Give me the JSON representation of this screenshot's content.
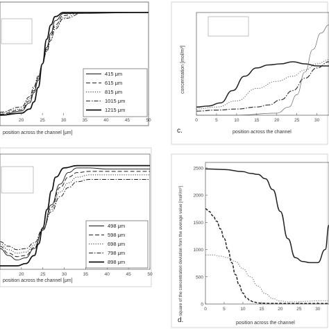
{
  "chart_data": [
    {
      "id": "a",
      "type": "line",
      "panel_label": "",
      "xlabel": "position across the channel [μm]",
      "ylabel": "",
      "xticks": [
        20,
        25,
        30,
        35,
        40,
        45,
        50
      ],
      "xlim": [
        15,
        50
      ],
      "ylim": [
        0,
        1
      ],
      "legend": [
        "415 μm",
        "615 μm",
        "815 μm",
        "1015 μm",
        "1215 μm"
      ],
      "series": [
        {
          "name": "415 μm",
          "x": [
            15,
            20,
            22,
            23,
            24,
            25,
            26,
            27,
            28,
            30,
            50
          ],
          "y": [
            0.0,
            0.04,
            0.12,
            0.22,
            0.34,
            0.5,
            0.66,
            0.8,
            0.92,
            0.99,
            1.0
          ]
        },
        {
          "name": "615 μm",
          "x": [
            15,
            20,
            22,
            23,
            24,
            25,
            26,
            27,
            28,
            30,
            33,
            50
          ],
          "y": [
            0.01,
            0.05,
            0.14,
            0.24,
            0.36,
            0.5,
            0.64,
            0.78,
            0.88,
            0.97,
            1.0,
            1.0
          ]
        },
        {
          "name": "815 μm",
          "x": [
            15,
            20,
            22,
            23,
            24,
            25,
            26,
            27,
            28,
            30,
            34,
            50
          ],
          "y": [
            0.02,
            0.06,
            0.16,
            0.26,
            0.37,
            0.5,
            0.63,
            0.75,
            0.86,
            0.95,
            1.0,
            1.0
          ]
        },
        {
          "name": "1015 μm",
          "x": [
            15,
            20,
            22,
            23,
            24,
            25,
            26,
            27,
            28,
            30,
            35,
            50
          ],
          "y": [
            0.03,
            0.08,
            0.18,
            0.28,
            0.38,
            0.5,
            0.62,
            0.73,
            0.84,
            0.94,
            1.0,
            1.0
          ]
        },
        {
          "name": "1215 μm",
          "x": [
            15,
            20,
            22,
            23,
            24,
            25,
            26,
            27,
            28,
            30,
            50
          ],
          "y": [
            0.0,
            0.02,
            0.06,
            0.13,
            0.27,
            0.5,
            0.74,
            0.88,
            0.96,
            1.0,
            1.0
          ]
        }
      ]
    },
    {
      "id": "c",
      "type": "line",
      "panel_label": "c.",
      "xlabel": "position across the channel",
      "ylabel": "concentration [mol/m³]",
      "xticks": [
        0,
        5,
        10,
        15,
        20,
        25,
        30
      ],
      "xlim": [
        0,
        33
      ],
      "ylim": [
        0,
        1
      ],
      "series": [
        {
          "name": "solid",
          "x": [
            0,
            3,
            6,
            9,
            12,
            15,
            18,
            21,
            24,
            27,
            30,
            33
          ],
          "y": [
            0.08,
            0.09,
            0.12,
            0.24,
            0.38,
            0.46,
            0.49,
            0.5,
            0.52,
            0.5,
            0.48,
            0.48
          ]
        },
        {
          "name": "dash-dot",
          "x": [
            0,
            5,
            10,
            15,
            18,
            21,
            24,
            27,
            30,
            33
          ],
          "y": [
            0.04,
            0.05,
            0.06,
            0.08,
            0.1,
            0.15,
            0.24,
            0.36,
            0.46,
            0.52
          ]
        },
        {
          "name": "dotted",
          "x": [
            0,
            5,
            10,
            15,
            20,
            24,
            27,
            30,
            33
          ],
          "y": [
            0.06,
            0.08,
            0.14,
            0.26,
            0.33,
            0.38,
            0.44,
            0.5,
            0.54
          ]
        },
        {
          "name": "thin",
          "x": [
            0,
            10,
            20,
            23,
            25,
            27,
            29,
            31,
            33
          ],
          "y": [
            0.0,
            0.0,
            0.02,
            0.08,
            0.2,
            0.42,
            0.64,
            0.8,
            0.88
          ]
        }
      ]
    },
    {
      "id": "b",
      "type": "line",
      "panel_label": "",
      "xlabel": "position across the channel [μm]",
      "ylabel": "",
      "xticks": [
        20,
        25,
        30,
        35,
        40,
        45,
        50
      ],
      "xlim": [
        15,
        50
      ],
      "ylim": [
        0,
        1
      ],
      "legend": [
        "498 μm",
        "598 μm",
        "698 μm",
        "798 μm",
        "898 μm"
      ],
      "series": [
        {
          "name": "498 μm",
          "x": [
            15,
            17,
            19,
            21,
            23,
            25,
            27,
            29,
            31,
            33,
            36,
            40,
            45,
            50
          ],
          "y": [
            0.18,
            0.12,
            0.08,
            0.1,
            0.18,
            0.34,
            0.56,
            0.74,
            0.84,
            0.88,
            0.88,
            0.87,
            0.87,
            0.87
          ]
        },
        {
          "name": "598 μm",
          "x": [
            15,
            17,
            19,
            21,
            23,
            25,
            27,
            29,
            31,
            33,
            36,
            40,
            45,
            50
          ],
          "y": [
            0.2,
            0.14,
            0.11,
            0.12,
            0.19,
            0.34,
            0.54,
            0.71,
            0.8,
            0.84,
            0.85,
            0.85,
            0.85,
            0.85
          ]
        },
        {
          "name": "698 μm",
          "x": [
            15,
            17,
            19,
            21,
            23,
            25,
            27,
            29,
            31,
            33,
            36,
            40,
            45,
            50
          ],
          "y": [
            0.22,
            0.17,
            0.14,
            0.15,
            0.21,
            0.34,
            0.52,
            0.67,
            0.75,
            0.8,
            0.82,
            0.82,
            0.82,
            0.82
          ]
        },
        {
          "name": "798 μm",
          "x": [
            15,
            17,
            19,
            21,
            23,
            25,
            27,
            29,
            31,
            33,
            36,
            40,
            45,
            50
          ],
          "y": [
            0.24,
            0.2,
            0.17,
            0.18,
            0.23,
            0.35,
            0.5,
            0.63,
            0.71,
            0.76,
            0.78,
            0.78,
            0.78,
            0.78
          ]
        },
        {
          "name": "898 μm",
          "x": [
            15,
            19,
            21,
            23,
            24,
            25,
            26,
            27,
            28,
            30,
            33,
            36,
            40,
            45,
            50
          ],
          "y": [
            0.03,
            0.03,
            0.05,
            0.12,
            0.22,
            0.36,
            0.52,
            0.68,
            0.8,
            0.88,
            0.9,
            0.9,
            0.9,
            0.9,
            0.9
          ]
        }
      ]
    },
    {
      "id": "d",
      "type": "line",
      "panel_label": "d.",
      "xlabel": "position across the channel",
      "ylabel": "square of the concentration deviation from the average value [mol²/m⁶]",
      "xticks": [
        0,
        5,
        10,
        15,
        20,
        25,
        30
      ],
      "yticks": [
        0,
        500,
        1000,
        1500,
        2000,
        2500
      ],
      "xlim": [
        0,
        33
      ],
      "ylim": [
        0,
        2600
      ],
      "series": [
        {
          "name": "solid",
          "x": [
            0,
            5,
            10,
            12,
            14,
            16,
            18,
            20,
            22,
            24,
            26,
            28,
            30,
            32,
            33
          ],
          "y": [
            2480,
            2470,
            2430,
            2400,
            2380,
            2300,
            2100,
            1700,
            1200,
            850,
            780,
            760,
            760,
            1000,
            1450
          ]
        },
        {
          "name": "dashed",
          "x": [
            0,
            1,
            2,
            3,
            4,
            5,
            6,
            7,
            8,
            9,
            10,
            11,
            12,
            13,
            14,
            15,
            17,
            20,
            25,
            30,
            33
          ],
          "y": [
            1750,
            1700,
            1620,
            1520,
            1380,
            1200,
            1000,
            760,
            540,
            350,
            200,
            110,
            60,
            35,
            20,
            15,
            12,
            10,
            10,
            10,
            10
          ]
        },
        {
          "name": "dotted",
          "x": [
            0,
            2,
            4,
            6,
            8,
            10,
            12,
            14,
            16,
            18,
            20,
            22,
            24,
            27,
            30,
            33
          ],
          "y": [
            900,
            900,
            880,
            850,
            780,
            650,
            500,
            330,
            190,
            100,
            55,
            40,
            40,
            50,
            60,
            60
          ]
        }
      ]
    }
  ]
}
